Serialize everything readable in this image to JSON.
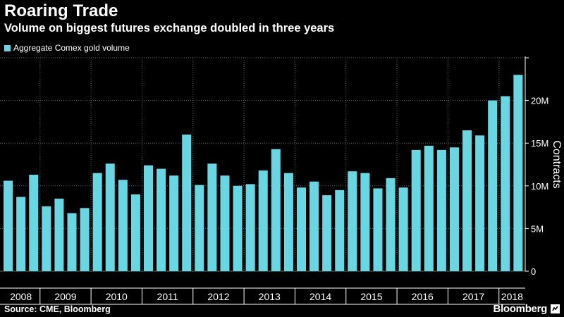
{
  "header": {
    "title": "Roaring Trade",
    "subtitle": "Volume on biggest futures exchange doubled in three years"
  },
  "footer": {
    "source": "Source: CME, Bloomberg",
    "brand": "Bloomberg"
  },
  "colors": {
    "bar": "#67d7e4",
    "background": "#000000",
    "grid": "#666666",
    "text": "#ffffff"
  },
  "chart_data": {
    "type": "bar",
    "title": "Roaring Trade",
    "subtitle": "Volume on biggest futures exchange doubled in three years",
    "ylabel": "Contracts",
    "xlabel": "",
    "ylim": [
      0,
      25
    ],
    "y_unit": "M",
    "yticks": [
      "0",
      "5M",
      "10M",
      "15M",
      "20M"
    ],
    "ytick_values": [
      0,
      5,
      10,
      15,
      20
    ],
    "y_axis_side": "right",
    "grid": true,
    "legend": "top-left",
    "series": [
      {
        "name": "Aggregate Comex gold volume",
        "values": [
          10.6,
          8.7,
          11.3,
          7.6,
          8.5,
          6.8,
          7.4,
          11.5,
          12.6,
          10.7,
          9.0,
          12.4,
          12.0,
          11.2,
          16.0,
          10.1,
          12.6,
          11.2,
          10.0,
          10.2,
          11.8,
          14.3,
          11.5,
          9.8,
          10.5,
          8.9,
          9.5,
          11.7,
          11.5,
          9.7,
          10.9,
          9.8,
          14.2,
          14.7,
          14.2,
          14.5,
          16.5,
          15.9,
          20.0,
          20.5,
          23.0
        ]
      }
    ],
    "x": [
      "2008 Q2",
      "2008 Q3",
      "2008 Q4",
      "2009 Q1",
      "2009 Q2",
      "2009 Q3",
      "2009 Q4",
      "2010 Q1",
      "2010 Q2",
      "2010 Q3",
      "2010 Q4",
      "2011 Q1",
      "2011 Q2",
      "2011 Q3",
      "2011 Q4",
      "2012 Q1",
      "2012 Q2",
      "2012 Q3",
      "2012 Q4",
      "2013 Q1",
      "2013 Q2",
      "2013 Q3",
      "2013 Q4",
      "2014 Q1",
      "2014 Q2",
      "2014 Q3",
      "2014 Q4",
      "2015 Q1",
      "2015 Q2",
      "2015 Q3",
      "2015 Q4",
      "2016 Q1",
      "2016 Q2",
      "2016 Q3",
      "2016 Q4",
      "2017 Q1",
      "2017 Q2",
      "2017 Q3",
      "2017 Q4",
      "2018 Q1",
      "2018 Q2"
    ],
    "year_labels": [
      "2008",
      "2009",
      "2010",
      "2011",
      "2012",
      "2013",
      "2014",
      "2015",
      "2016",
      "2017",
      "2018"
    ]
  }
}
